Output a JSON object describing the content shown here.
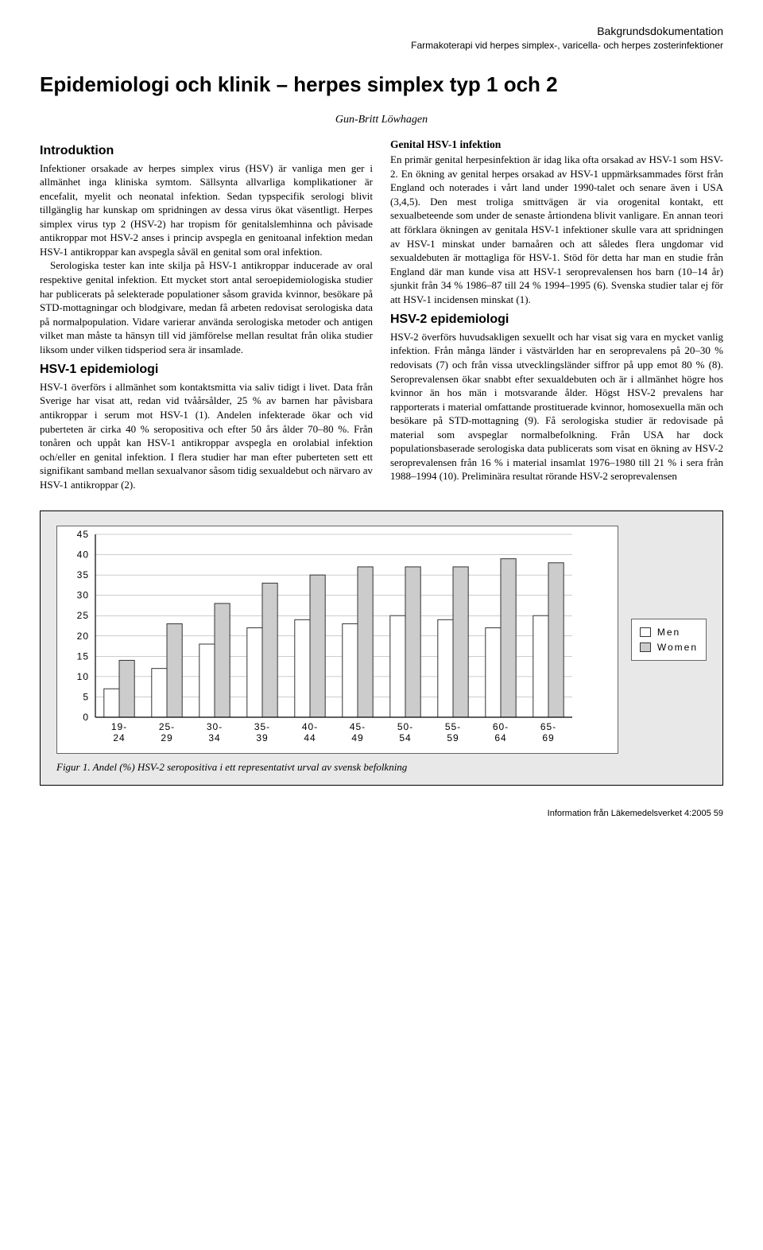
{
  "header": {
    "line1": "Bakgrundsdokumentation",
    "line2": "Farmakoterapi vid herpes simplex-, varicella- och herpes zosterinfektioner"
  },
  "title": "Epidemiologi och klinik – herpes simplex typ 1 och 2",
  "author": "Gun-Britt Löwhagen",
  "sections": {
    "intro_h": "Introduktion",
    "intro_p1": "Infektioner orsakade av herpes simplex virus (HSV) är vanliga men ger i allmänhet inga kliniska symtom. Sällsynta allvarliga komplikationer är encefalit, myelit och neonatal infektion. Sedan typspecifik serologi blivit tillgänglig har kunskap om spridningen av dessa virus ökat väsentligt. Herpes simplex virus typ 2 (HSV-2) har tropism för genitalslemhinna och påvisade antikroppar mot HSV-2 anses i princip avspegla en genitoanal infektion medan HSV-1 antikroppar kan avspegla såväl en genital som oral infektion.",
    "intro_p2": "Serologiska tester kan inte skilja på HSV-1 antikroppar inducerade av oral respektive genital infektion. Ett mycket stort antal seroepidemiologiska studier har publicerats på selekterade populationer såsom gravida kvinnor, besökare på STD-mottagningar och blodgivare, medan få arbeten redovisat serologiska data på normalpopulation. Vidare varierar använda serologiska metoder och antigen vilket man måste ta hänsyn till vid jämförelse mellan resultat från olika studier liksom under vilken tidsperiod sera är insamlade.",
    "hsv1_h": "HSV-1 epidemiologi",
    "hsv1_p1": "HSV-1 överförs i allmänhet som kontaktsmitta via saliv tidigt i livet. Data från Sverige har visat att, redan vid tvåårsålder, 25 % av barnen har påvisbara antikroppar i serum mot HSV-1 (1). Andelen infekterade ökar och vid puberteten är cirka 40 % seropositiva och efter 50 års ålder 70–80 %. Från tonåren och uppåt kan HSV-1 antikroppar avspegla en orolabial infektion och/eller en genital infektion. I flera studier har man efter puberteten sett ett signifikant samband mellan sexualvanor såsom tidig sexualdebut och närvaro av HSV-1 antikroppar (2).",
    "gen_h": "Genital HSV-1 infektion",
    "gen_p1": "En primär genital herpesinfektion är idag lika ofta orsakad av HSV-1 som HSV-2. En ökning av genital herpes orsakad av HSV-1 uppmärksammades först från England och noterades i vårt land under 1990-talet och senare även i USA (3,4,5). Den mest troliga smittvägen är via orogenital kontakt, ett sexualbeteende som under de senaste årtiondena blivit vanligare. En annan teori att förklara ökningen av genitala HSV-1 infektioner skulle vara att spridningen av HSV-1 minskat under barnaåren och att således flera ungdomar vid sexualdebuten är mottagliga för HSV-1. Stöd för detta har man en studie från England där man kunde visa att HSV-1 seroprevalensen hos barn (10–14 år) sjunkit från 34 % 1986–87 till 24 % 1994–1995 (6). Svenska studier talar ej för att HSV-1 incidensen minskat (1).",
    "hsv2_h": "HSV-2 epidemiologi",
    "hsv2_p1": "HSV-2 överförs huvudsakligen sexuellt och har visat sig vara en mycket vanlig infektion. Från många länder i västvärlden har en seroprevalens på 20–30 % redovisats (7) och från vissa utvecklingsländer siffror på upp emot 80 % (8). Seroprevalensen ökar snabbt efter sexualdebuten och är i allmänhet högre hos kvinnor än hos män i motsvarande ålder. Högst HSV-2 prevalens har rapporterats i material omfattande prostituerade kvinnor, homosexuella män och besökare på STD-mottagning (9). Få serologiska studier är redovisade på material som avspeglar normalbefolkning. Från USA har dock populationsbaserade serologiska data publicerats som visat en ökning av HSV-2 seroprevalensen från 16 % i material insamlat 1976–1980 till 21 % i sera från 1988–1994 (10). Preliminära resultat rörande HSV-2 seroprevalensen"
  },
  "chart": {
    "type": "grouped-bar",
    "categories": [
      "19-24",
      "25-29",
      "30-34",
      "35-39",
      "40-44",
      "45-49",
      "50-54",
      "55-59",
      "60-64",
      "65-69"
    ],
    "series": [
      {
        "name": "Men",
        "color": "#ffffff",
        "values": [
          7,
          12,
          18,
          22,
          24,
          23,
          25,
          24,
          22,
          25
        ]
      },
      {
        "name": "Women",
        "color": "#cccccc",
        "values": [
          14,
          23,
          28,
          33,
          35,
          37,
          37,
          37,
          39,
          38
        ]
      }
    ],
    "ylim": [
      0,
      45
    ],
    "ytick_step": 5,
    "background_color": "#ffffff",
    "grid_color": "#999999",
    "bar_border": "#333333",
    "axis_color": "#000000",
    "label_fontsize": 12,
    "caption": "Figur 1. Andel (%) HSV-2 seropositiva i ett representativt urval av svensk befolkning"
  },
  "footer": "Information från Läkemedelsverket 4:2005   59"
}
